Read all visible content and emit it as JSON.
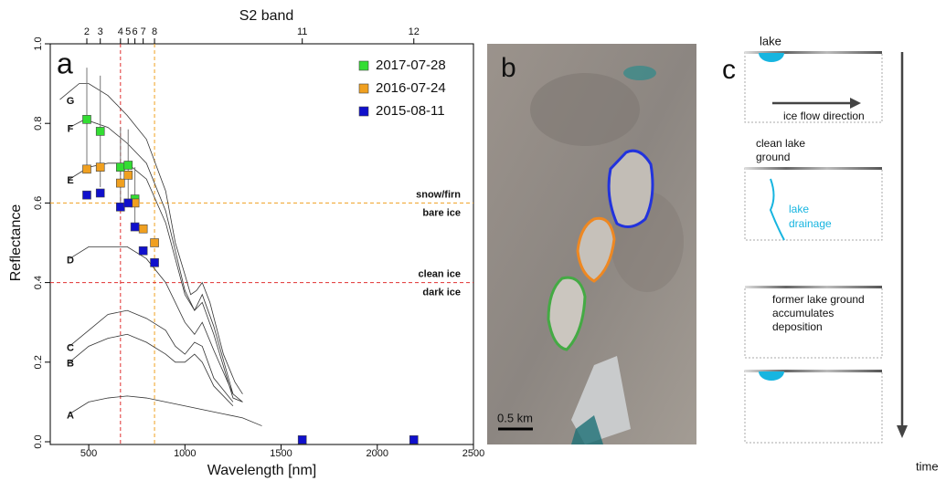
{
  "chart_data": {
    "type": "scatter",
    "panel_label": "a",
    "xlabel": "Wavelength [nm]",
    "ylabel": "Reflectance",
    "x2label": "S2 band",
    "xlim": [
      300,
      2500
    ],
    "ylim": [
      0,
      1
    ],
    "xticks": [
      500,
      1000,
      1500,
      2000,
      2500
    ],
    "yticks": [
      {
        "value": 0,
        "label": "0.0"
      },
      0.2,
      0.4,
      0.6,
      0.8,
      {
        "value": 1,
        "label": "1.0"
      }
    ],
    "x2ticks": [
      {
        "value": 490,
        "label": "2"
      },
      {
        "value": 560,
        "label": "3"
      },
      {
        "value": 665,
        "label": "4"
      },
      {
        "value": 705,
        "label": "5"
      },
      {
        "value": 740,
        "label": "6"
      },
      {
        "value": 783,
        "label": "7"
      },
      {
        "value": 842,
        "label": "8"
      },
      {
        "value": 1610,
        "label": "11"
      },
      {
        "value": 2190,
        "label": "12"
      }
    ],
    "legend": "top-right",
    "series": [
      {
        "name": "2017-07-28",
        "color": "#33dd33",
        "x": [
          490,
          560,
          665,
          705,
          740
        ],
        "values": [
          0.81,
          0.78,
          0.69,
          0.695,
          0.61
        ],
        "errors": [
          0.13,
          0.14,
          0.1,
          0.09,
          0.08
        ]
      },
      {
        "name": "2016-07-24",
        "color": "#f0a020",
        "x": [
          490,
          560,
          665,
          705,
          740,
          783,
          842
        ],
        "values": [
          0.685,
          0.69,
          0.65,
          0.67,
          0.6,
          0.535,
          0.5
        ]
      },
      {
        "name": "2015-08-11",
        "color": "#1010cc",
        "x": [
          490,
          560,
          665,
          705,
          740,
          783,
          842,
          1610,
          2190
        ],
        "values": [
          0.62,
          0.625,
          0.59,
          0.6,
          0.54,
          0.48,
          0.45,
          0.005,
          0.005
        ]
      }
    ],
    "curves": [
      {
        "name": "G",
        "x": [
          350,
          450,
          500,
          600,
          700,
          800,
          900,
          950,
          1000,
          1030,
          1060,
          1090,
          1130,
          1200,
          1260,
          1300
        ],
        "values": [
          0.86,
          0.9,
          0.9,
          0.87,
          0.82,
          0.76,
          0.63,
          0.5,
          0.42,
          0.37,
          0.38,
          0.4,
          0.35,
          0.22,
          0.15,
          0.12
        ]
      },
      {
        "name": "F",
        "x": [
          400,
          480,
          600,
          700,
          800,
          900,
          1000,
          1050,
          1090,
          1150,
          1250,
          1300
        ],
        "values": [
          0.79,
          0.81,
          0.79,
          0.75,
          0.7,
          0.58,
          0.38,
          0.33,
          0.37,
          0.29,
          0.12,
          0.1
        ]
      },
      {
        "name": "E",
        "x": [
          400,
          500,
          600,
          700,
          800,
          900,
          1000,
          1050,
          1090,
          1150,
          1250,
          1300
        ],
        "values": [
          0.66,
          0.69,
          0.7,
          0.7,
          0.66,
          0.55,
          0.37,
          0.33,
          0.35,
          0.27,
          0.11,
          0.1
        ]
      },
      {
        "name": "D",
        "x": [
          400,
          500,
          600,
          700,
          800,
          900,
          1000,
          1050,
          1090,
          1150,
          1250
        ],
        "values": [
          0.46,
          0.49,
          0.49,
          0.49,
          0.46,
          0.4,
          0.3,
          0.27,
          0.3,
          0.23,
          0.12
        ]
      },
      {
        "name": "C",
        "x": [
          400,
          500,
          600,
          700,
          800,
          900,
          950,
          1000,
          1050,
          1090,
          1150,
          1250
        ],
        "values": [
          0.24,
          0.28,
          0.32,
          0.33,
          0.31,
          0.28,
          0.24,
          0.22,
          0.25,
          0.24,
          0.16,
          0.1
        ]
      },
      {
        "name": "B",
        "x": [
          400,
          500,
          600,
          700,
          800,
          900,
          950,
          1000,
          1050,
          1090,
          1150,
          1250
        ],
        "values": [
          0.2,
          0.24,
          0.26,
          0.27,
          0.25,
          0.22,
          0.2,
          0.2,
          0.22,
          0.2,
          0.14,
          0.09
        ]
      },
      {
        "name": "A",
        "x": [
          400,
          500,
          600,
          700,
          800,
          900,
          1000,
          1100,
          1200,
          1300,
          1400
        ],
        "values": [
          0.07,
          0.1,
          0.11,
          0.115,
          0.11,
          0.1,
          0.09,
          0.08,
          0.07,
          0.06,
          0.04
        ]
      }
    ],
    "hlines": [
      {
        "value": 0.6,
        "color": "#f0a020",
        "labels": [
          "snow/firn",
          "bare ice"
        ]
      },
      {
        "value": 0.4,
        "color": "#e03030",
        "labels": [
          "clean ice",
          "dark ice"
        ]
      }
    ],
    "vlines": [
      {
        "value": 665,
        "color": "#e03030"
      },
      {
        "value": 842,
        "color": "#f0a020"
      }
    ]
  },
  "panel_b": {
    "label": "b",
    "scale": "0.5 km"
  },
  "panel_c": {
    "label": "c",
    "texts": [
      "lake",
      "ice flow direction",
      "clean lake",
      "ground",
      "lake",
      "drainage",
      "former lake ground",
      "accumulates",
      "deposition",
      "time"
    ]
  }
}
